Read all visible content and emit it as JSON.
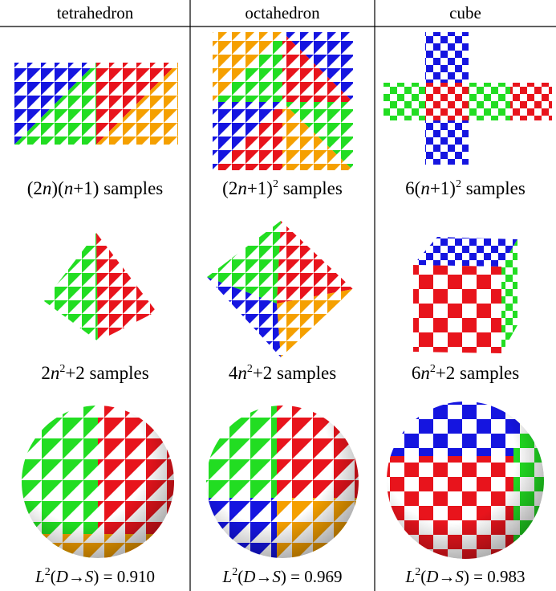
{
  "header": {
    "columns": [
      "tetrahedron",
      "octahedron",
      "cube"
    ]
  },
  "rows": [
    {
      "captions": [
        [
          "(2",
          "n",
          ")(",
          "n",
          "+1) samples"
        ],
        [
          "(2",
          "n",
          "+1)",
          "2",
          " samples"
        ],
        [
          "6(",
          "n",
          "+1)",
          "2",
          " samples"
        ]
      ]
    },
    {
      "captions": [
        [
          "2",
          "n",
          "2",
          "+2 samples"
        ],
        [
          "4",
          "n",
          "2",
          "+2 samples"
        ],
        [
          "6",
          "n",
          "2",
          "+2 samples"
        ]
      ]
    },
    {
      "captions": [
        [
          "L",
          "2",
          "(",
          "D",
          "→",
          "S",
          ") = 0.910"
        ],
        [
          "L",
          "2",
          "(",
          "D",
          "→",
          "S",
          ") = 0.969"
        ],
        [
          "L",
          "2",
          "(",
          "D",
          "→",
          "S",
          ") = 0.983"
        ]
      ]
    }
  ]
}
